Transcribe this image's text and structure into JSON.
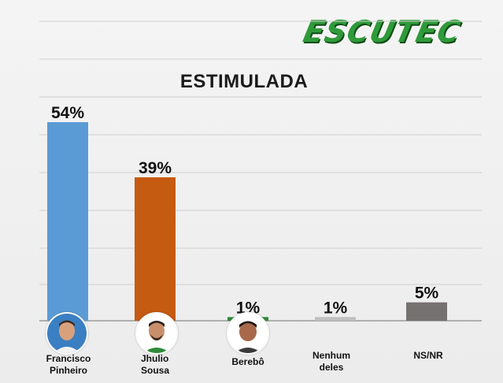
{
  "logo": {
    "text": "ESCUTEC",
    "color": "#2f9a3a"
  },
  "chart_data": {
    "type": "bar",
    "title": "ESTIMULADA",
    "categories": [
      [
        "Francisco",
        "Pinheiro"
      ],
      [
        "Jhulio",
        "Sousa"
      ],
      [
        "Berebô"
      ],
      [
        "Nenhum",
        "deles"
      ],
      [
        "NS/NR"
      ]
    ],
    "values": [
      54,
      39,
      1,
      1,
      5
    ],
    "value_labels": [
      "54%",
      "39%",
      "1%",
      "1%",
      "5%"
    ],
    "colors": [
      "#5b9bd5",
      "#c55a11",
      "#2e8b3a",
      "#bfbfbf",
      "#767171"
    ],
    "ylim": [
      0,
      60
    ],
    "grid": true,
    "legend": "none"
  }
}
